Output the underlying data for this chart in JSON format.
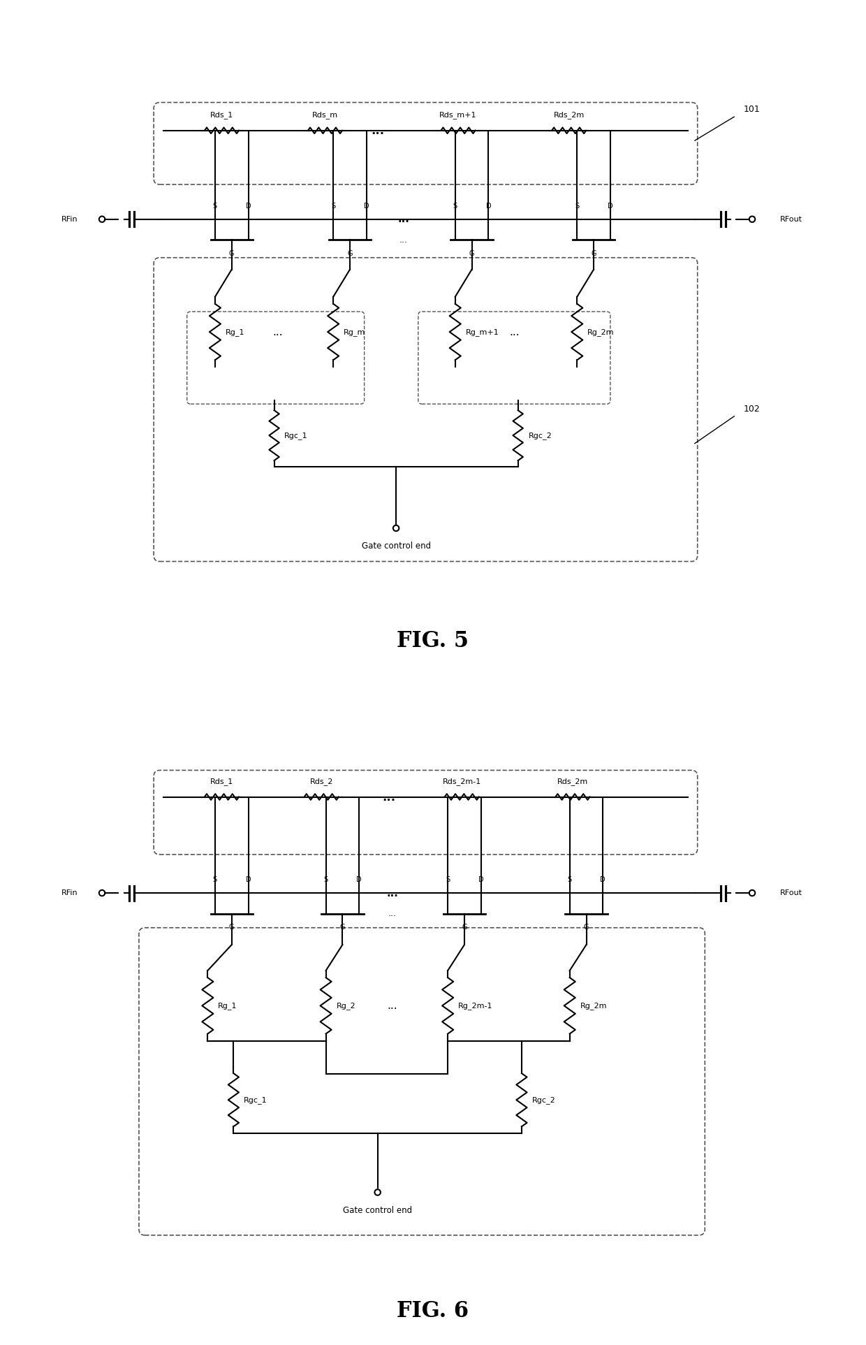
{
  "fig_width": 12.4,
  "fig_height": 19.25,
  "bg_color": "#ffffff",
  "line_color": "#000000",
  "dashed_color": "#555555",
  "fig5_title": "FIG. 5",
  "fig6_title": "FIG. 6",
  "gate_control_label": "Gate control end",
  "rds_labels_fig5": [
    "Rds_1",
    "Rds_m",
    "Rds_m+1",
    "Rds_2m"
  ],
  "rg_labels_fig5": [
    "Rg_1",
    "Rg_m",
    "Rg_m+1",
    "Rg_2m"
  ],
  "rgc_labels_fig5": [
    "Rgc_1",
    "Rgc_2"
  ],
  "rds_labels_fig6": [
    "Rds_1",
    "Rds_2",
    "Rds_2m-1",
    "Rds_2m"
  ],
  "rg_labels_fig6": [
    "Rg_1",
    "Rg_2",
    "Rg_2m-1",
    "Rg_2m"
  ],
  "rgc_labels_fig6": [
    "Rgc_1",
    "Rgc_2"
  ],
  "label_101": "101",
  "label_102": "102",
  "rfin_label": "RFin",
  "rfout_label": "RFout"
}
